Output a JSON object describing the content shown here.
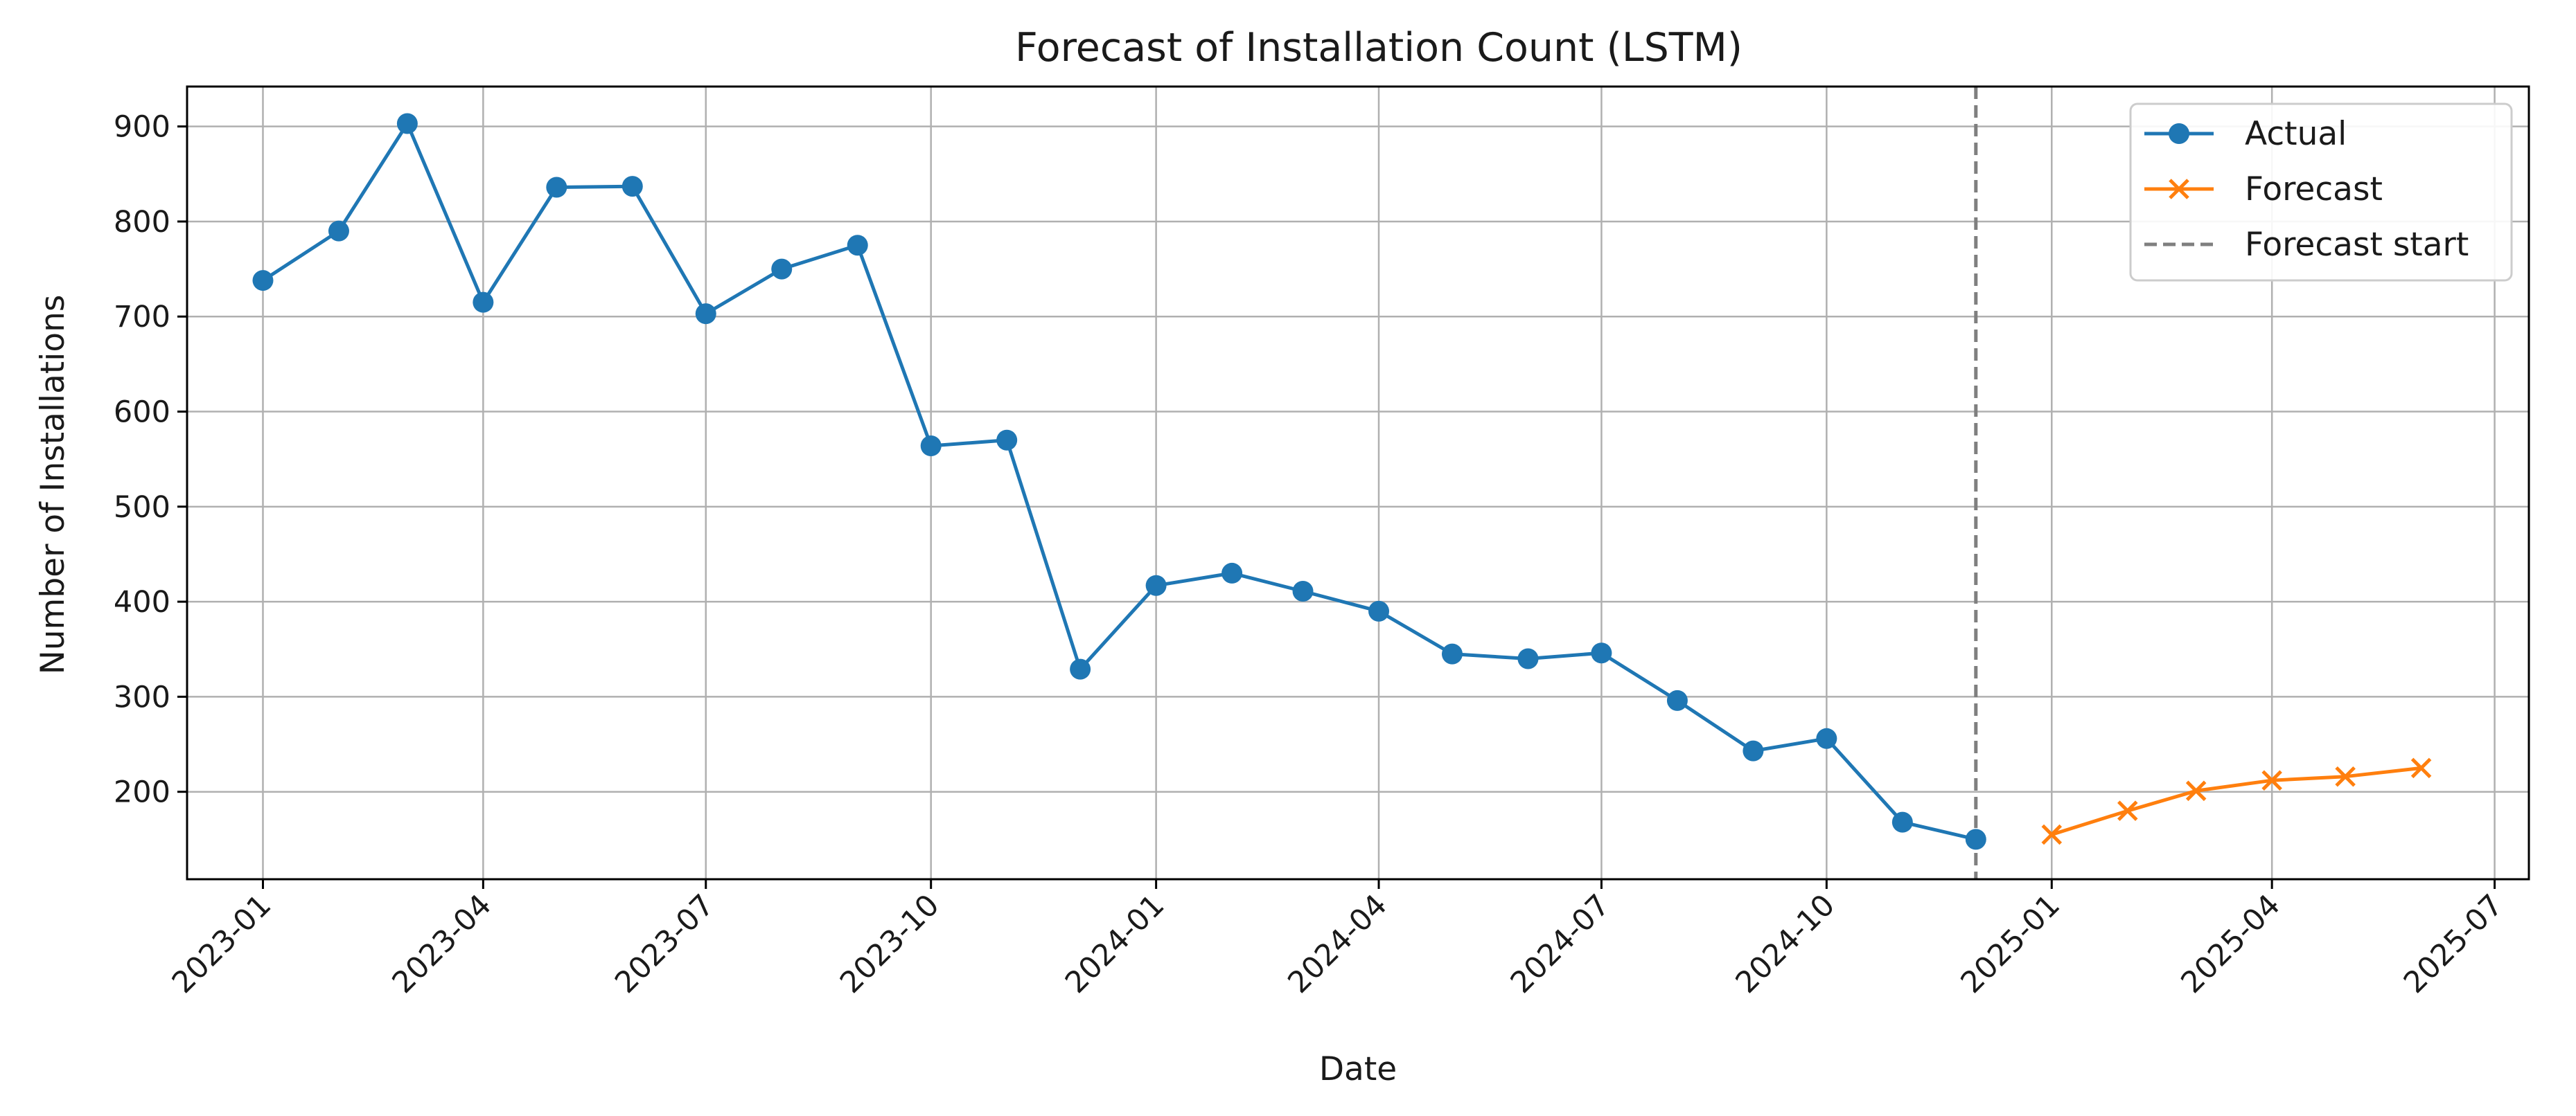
{
  "chart_data": {
    "type": "line",
    "title": "Forecast of Installation Count (LSTM)",
    "xlabel": "Date",
    "ylabel": "Number of Installations",
    "xlim": [
      "2022-12-01",
      "2025-07-15"
    ],
    "ylim": [
      108,
      942
    ],
    "x_ticks": [
      "2023-01",
      "2023-04",
      "2023-07",
      "2023-10",
      "2024-01",
      "2024-04",
      "2024-07",
      "2024-10",
      "2025-01",
      "2025-04",
      "2025-07"
    ],
    "y_ticks": [
      200,
      300,
      400,
      500,
      600,
      700,
      800,
      900
    ],
    "grid": true,
    "legend_position": "top-right",
    "series": [
      {
        "name": "Actual",
        "color": "#1f77b4",
        "marker": "circle",
        "x": [
          "2023-01-01",
          "2023-02-01",
          "2023-03-01",
          "2023-04-01",
          "2023-05-01",
          "2023-06-01",
          "2023-07-01",
          "2023-08-01",
          "2023-09-01",
          "2023-10-01",
          "2023-11-01",
          "2023-12-01",
          "2024-01-01",
          "2024-02-01",
          "2024-03-01",
          "2024-04-01",
          "2024-05-01",
          "2024-06-01",
          "2024-07-01",
          "2024-08-01",
          "2024-09-01",
          "2024-10-01",
          "2024-11-01",
          "2024-12-01"
        ],
        "values": [
          738,
          790,
          903,
          715,
          836,
          837,
          703,
          750,
          775,
          564,
          570,
          329,
          417,
          430,
          411,
          390,
          345,
          340,
          346,
          296,
          243,
          256,
          168,
          150
        ]
      },
      {
        "name": "Forecast",
        "color": "#ff7f0e",
        "marker": "x",
        "x": [
          "2025-01-01",
          "2025-02-01",
          "2025-03-01",
          "2025-04-01",
          "2025-05-01",
          "2025-06-01"
        ],
        "values": [
          155,
          180,
          201,
          212,
          216,
          225
        ]
      }
    ],
    "vertical_lines": [
      {
        "name": "Forecast start",
        "x": "2024-12-01",
        "style": "dashed",
        "color": "#7f7f7f"
      }
    ]
  }
}
